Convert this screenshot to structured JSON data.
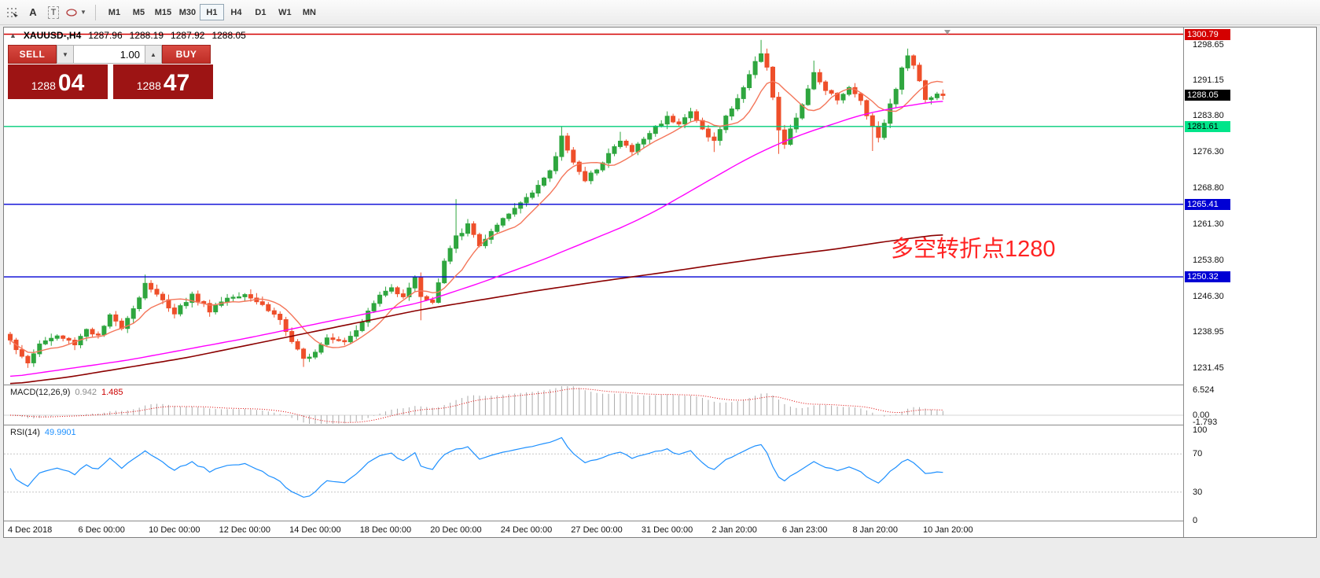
{
  "toolbar": {
    "text_tool_label": "A",
    "label_tool_label": "T",
    "timeframes": [
      "M1",
      "M5",
      "M15",
      "M30",
      "H1",
      "H4",
      "D1",
      "W1",
      "MN"
    ],
    "active_timeframe": "H1"
  },
  "chart": {
    "title": {
      "symbol": "XAUUSD-,H4",
      "open": "1287.96",
      "high": "1288.19",
      "low": "1287.92",
      "close": "1288.05"
    },
    "trade_panel": {
      "sell_label": "SELL",
      "buy_label": "BUY",
      "volume": "1.00",
      "sell_price_main": "1288",
      "sell_price_big": "04",
      "buy_price_main": "1288",
      "buy_price_big": "47"
    },
    "annotation": {
      "text": "多空转折点1280",
      "color": "#ff2222"
    }
  },
  "chart_data": {
    "type": "candlestick",
    "symbol": "XAUUSD",
    "timeframe": "H4",
    "candle_count": 160,
    "current_price": 1288.05,
    "colors": {
      "bull": "#2fa63f",
      "bear": "#ee4f2a",
      "ma_fast": "#f4765a",
      "ma_mid": "#ff00ff",
      "ma_slow": "#8b0000",
      "macd_hist": "#ababab",
      "macd_signal": "#dd0000",
      "rsi": "#1e90ff"
    },
    "close_waypoints": [
      [
        0,
        1237.5
      ],
      [
        2,
        1233.5
      ],
      [
        3,
        1232.3
      ],
      [
        5,
        1236.5
      ],
      [
        8,
        1238.0
      ],
      [
        11,
        1236.5
      ],
      [
        13,
        1239.5
      ],
      [
        15,
        1238.0
      ],
      [
        17,
        1242.0
      ],
      [
        19,
        1240.0
      ],
      [
        22,
        1246.0
      ],
      [
        23,
        1249.2
      ],
      [
        25,
        1246.5
      ],
      [
        28,
        1243.0
      ],
      [
        31,
        1246.5
      ],
      [
        34,
        1243.5
      ],
      [
        37,
        1246.0
      ],
      [
        40,
        1247.0
      ],
      [
        43,
        1244.5
      ],
      [
        46,
        1241.5
      ],
      [
        48,
        1236.5
      ],
      [
        50,
        1233.2
      ],
      [
        52,
        1235.0
      ],
      [
        54,
        1238.0
      ],
      [
        57,
        1237.0
      ],
      [
        59,
        1239.5
      ],
      [
        61,
        1243.0
      ],
      [
        63,
        1246.5
      ],
      [
        65,
        1248.0
      ],
      [
        67,
        1246.5
      ],
      [
        69,
        1250.0
      ],
      [
        70,
        1246.5
      ],
      [
        72,
        1245.0
      ],
      [
        73,
        1249.0
      ],
      [
        74,
        1253.5
      ],
      [
        76,
        1258.5
      ],
      [
        78,
        1261.0
      ],
      [
        80,
        1257.0
      ],
      [
        82,
        1259.5
      ],
      [
        84,
        1262.0
      ],
      [
        86,
        1264.5
      ],
      [
        88,
        1267.0
      ],
      [
        90,
        1269.5
      ],
      [
        92,
        1272.0
      ],
      [
        93,
        1275.5
      ],
      [
        94,
        1279.5
      ],
      [
        96,
        1274.5
      ],
      [
        98,
        1270.0
      ],
      [
        100,
        1273.0
      ],
      [
        102,
        1276.0
      ],
      [
        104,
        1278.5
      ],
      [
        106,
        1276.5
      ],
      [
        108,
        1279.0
      ],
      [
        110,
        1281.5
      ],
      [
        112,
        1283.5
      ],
      [
        114,
        1282.5
      ],
      [
        116,
        1284.5
      ],
      [
        118,
        1281.0
      ],
      [
        120,
        1278.5
      ],
      [
        122,
        1283.5
      ],
      [
        124,
        1287.5
      ],
      [
        126,
        1292.0
      ],
      [
        127,
        1295.5
      ],
      [
        128,
        1297.0
      ],
      [
        129,
        1294.0
      ],
      [
        130,
        1287.5
      ],
      [
        131,
        1280.5
      ],
      [
        132,
        1278.0
      ],
      [
        134,
        1283.5
      ],
      [
        136,
        1289.0
      ],
      [
        137,
        1292.5
      ],
      [
        139,
        1289.5
      ],
      [
        141,
        1287.5
      ],
      [
        143,
        1289.5
      ],
      [
        145,
        1287.0
      ],
      [
        147,
        1281.5
      ],
      [
        148,
        1279.5
      ],
      [
        150,
        1286.0
      ],
      [
        152,
        1293.5
      ],
      [
        153,
        1296.5
      ],
      [
        155,
        1291.5
      ],
      [
        156,
        1287.5
      ],
      [
        158,
        1288.2
      ],
      [
        159,
        1288.05
      ]
    ],
    "wick_overrides": {
      "3": [
        null,
        1231.4
      ],
      "23": [
        1250.8,
        null
      ],
      "50": [
        null,
        1231.6
      ],
      "70": [
        null,
        1241.3
      ],
      "76": [
        1266.5,
        null
      ],
      "94": [
        1281.6,
        null
      ],
      "104": [
        1280.5,
        null
      ],
      "120": [
        null,
        1276.3
      ],
      "128": [
        1299.6,
        null
      ],
      "131": [
        null,
        1275.9
      ],
      "137": [
        1295.3,
        null
      ],
      "147": [
        null,
        1276.5
      ],
      "153": [
        1297.8,
        null
      ]
    },
    "ma_mid_waypoints": [
      [
        0,
        1229.5
      ],
      [
        20,
        1233.0
      ],
      [
        40,
        1237.5
      ],
      [
        50,
        1240.0
      ],
      [
        60,
        1242.5
      ],
      [
        70,
        1245.0
      ],
      [
        80,
        1249.0
      ],
      [
        90,
        1253.5
      ],
      [
        95,
        1256.0
      ],
      [
        100,
        1258.5
      ],
      [
        105,
        1261.0
      ],
      [
        110,
        1264.0
      ],
      [
        115,
        1267.5
      ],
      [
        120,
        1271.0
      ],
      [
        125,
        1274.5
      ],
      [
        130,
        1277.5
      ],
      [
        135,
        1280.0
      ],
      [
        140,
        1282.0
      ],
      [
        145,
        1284.0
      ],
      [
        150,
        1285.3
      ],
      [
        155,
        1286.3
      ],
      [
        159,
        1287.0
      ]
    ],
    "ma_slow_waypoints": [
      [
        0,
        1228.0
      ],
      [
        10,
        1229.5
      ],
      [
        20,
        1231.5
      ],
      [
        30,
        1233.5
      ],
      [
        40,
        1236.0
      ],
      [
        50,
        1238.5
      ],
      [
        60,
        1241.0
      ],
      [
        70,
        1243.5
      ],
      [
        80,
        1245.5
      ],
      [
        90,
        1247.5
      ],
      [
        100,
        1249.3
      ],
      [
        110,
        1251.0
      ],
      [
        120,
        1252.8
      ],
      [
        130,
        1254.5
      ],
      [
        140,
        1256.0
      ],
      [
        150,
        1257.8
      ],
      [
        159,
        1259.2
      ]
    ],
    "hlines": [
      {
        "value": 1300.79,
        "label": "1300.79",
        "color": "#d40000",
        "box_bg": "#d40000",
        "box_fg": "#ffffff"
      },
      {
        "value": 1281.61,
        "label": "1281.61",
        "color": "#00cc7a",
        "box_bg": "#00e58a",
        "box_fg": "#000000"
      },
      {
        "value": 1265.41,
        "label": "1265.41",
        "color": "#0000d4",
        "box_bg": "#0000d4",
        "box_fg": "#ffffff"
      },
      {
        "value": 1250.32,
        "label": "1250.32",
        "color": "#0000d4",
        "box_bg": "#0000d4",
        "box_fg": "#ffffff"
      }
    ],
    "current_price_box": {
      "label": "1288.05",
      "box_bg": "#000000",
      "box_fg": "#ffffff"
    },
    "price_axis_ticks": [
      1298.65,
      1291.15,
      1283.8,
      1276.3,
      1268.8,
      1261.3,
      1253.8,
      1246.3,
      1238.95,
      1231.45
    ],
    "time_axis": {
      "labels": [
        "4 Dec 2018",
        "6 Dec 00:00",
        "10 Dec 00:00",
        "12 Dec 00:00",
        "14 Dec 00:00",
        "18 Dec 00:00",
        "20 Dec 00:00",
        "24 Dec 00:00",
        "27 Dec 00:00",
        "31 Dec 00:00",
        "2 Jan 20:00",
        "6 Jan 23:00",
        "8 Jan 20:00",
        "10 Jan 20:00"
      ],
      "indices": [
        0,
        12,
        24,
        36,
        48,
        60,
        72,
        84,
        96,
        108,
        120,
        132,
        144,
        156
      ]
    },
    "macd": {
      "label": "MACD(12,26,9)",
      "value": "0.942",
      "signal": "1.485",
      "axis": [
        "6.524",
        "0.00",
        "-1.793"
      ],
      "axis_values": [
        6.524,
        0,
        -1.793
      ]
    },
    "rsi": {
      "label": "RSI(14)",
      "value": "49.9901",
      "axis_values": [
        100,
        70,
        30,
        0
      ],
      "levels": [
        70,
        30
      ]
    }
  }
}
